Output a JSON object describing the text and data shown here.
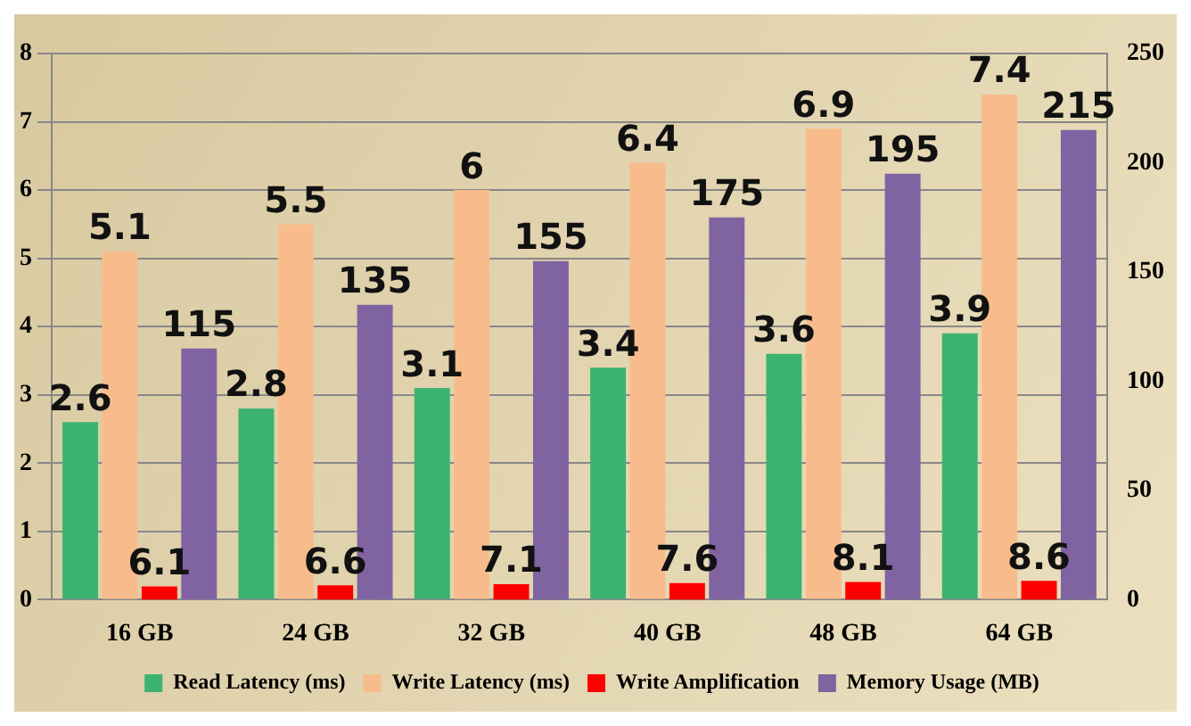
{
  "chart_data": {
    "type": "bar",
    "categories": [
      "16 GB",
      "24 GB",
      "32 GB",
      "40 GB",
      "48 GB",
      "64 GB"
    ],
    "series": [
      {
        "name": "Read Latency (ms)",
        "color": "#3cb371",
        "values": [
          2.6,
          2.8,
          3.1,
          3.4,
          3.6,
          3.9
        ]
      },
      {
        "name": "Write Latency (ms)",
        "color": "#f8bc8c",
        "values": [
          5.1,
          5.5,
          6,
          6.4,
          6.9,
          7.4
        ]
      },
      {
        "name": "Write Amplification",
        "color": "#ff0000",
        "values": [
          6.1,
          6.6,
          7.1,
          7.6,
          8.1,
          8.6
        ],
        "axis": "y2"
      },
      {
        "name": "Memory Usage (MB)",
        "color": "#8064a2",
        "values": [
          115,
          135,
          155,
          175,
          195,
          215
        ],
        "axis": "y2"
      }
    ],
    "ylim": [
      0,
      8
    ],
    "yticks": [
      0,
      1,
      2,
      3,
      4,
      5,
      6,
      7,
      8
    ],
    "y2lim": [
      0,
      250
    ],
    "y2ticks": [
      0,
      50,
      100,
      150,
      200,
      250
    ],
    "grid": "y",
    "legend": "bottom",
    "data_labels": true
  }
}
